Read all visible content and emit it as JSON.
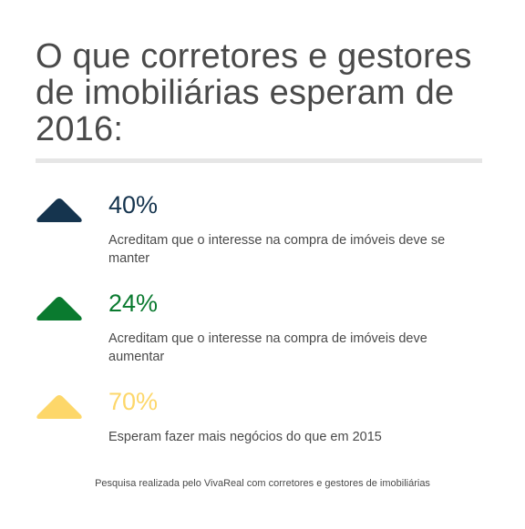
{
  "title": "O que corretores e gestores de imobiliárias esperam de 2016:",
  "stats": [
    {
      "value": "40%",
      "description": "Acreditam que o interesse na compra de imóveis deve se manter",
      "color": "#15344e",
      "icon": "triangle-up-icon"
    },
    {
      "value": "24%",
      "description": "Acreditam que o interesse na compra de imóveis deve aumentar",
      "color": "#0a7a2f",
      "icon": "triangle-up-icon"
    },
    {
      "value": "70%",
      "description": "Esperam fazer mais negócios do que em 2015",
      "color": "#fdd76a",
      "icon": "triangle-up-icon"
    }
  ],
  "footnote": "Pesquisa realizada pelo VivaReal com corretores e gestores de imobiliárias",
  "colors": {
    "text": "#4a4a4a",
    "divider": "#e6e6e6"
  }
}
